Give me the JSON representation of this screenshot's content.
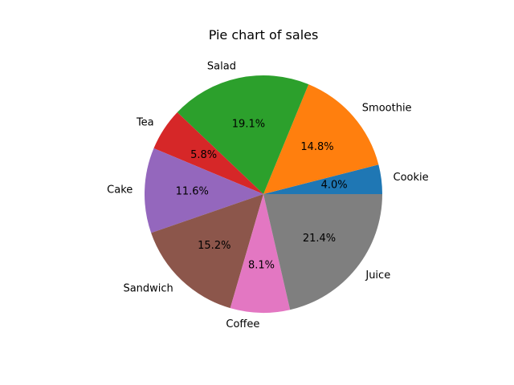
{
  "chart_data": {
    "type": "pie",
    "title": "Pie chart of sales",
    "start_angle_deg": 0,
    "direction": "counterclockwise",
    "slices": [
      {
        "label": "Cookie",
        "value": 4.0,
        "pct_label": "4.0%",
        "color": "#1f77b4"
      },
      {
        "label": "Smoothie",
        "value": 14.8,
        "pct_label": "14.8%",
        "color": "#ff7f0e"
      },
      {
        "label": "Salad",
        "value": 19.1,
        "pct_label": "19.1%",
        "color": "#2ca02c"
      },
      {
        "label": "Tea",
        "value": 5.8,
        "pct_label": "5.8%",
        "color": "#d62728"
      },
      {
        "label": "Cake",
        "value": 11.6,
        "pct_label": "11.6%",
        "color": "#9467bd"
      },
      {
        "label": "Sandwich",
        "value": 15.2,
        "pct_label": "15.2%",
        "color": "#8c564b"
      },
      {
        "label": "Coffee",
        "value": 8.1,
        "pct_label": "8.1%",
        "color": "#e377c2"
      },
      {
        "label": "Juice",
        "value": 21.4,
        "pct_label": "21.4%",
        "color": "#7f7f7f"
      }
    ]
  }
}
